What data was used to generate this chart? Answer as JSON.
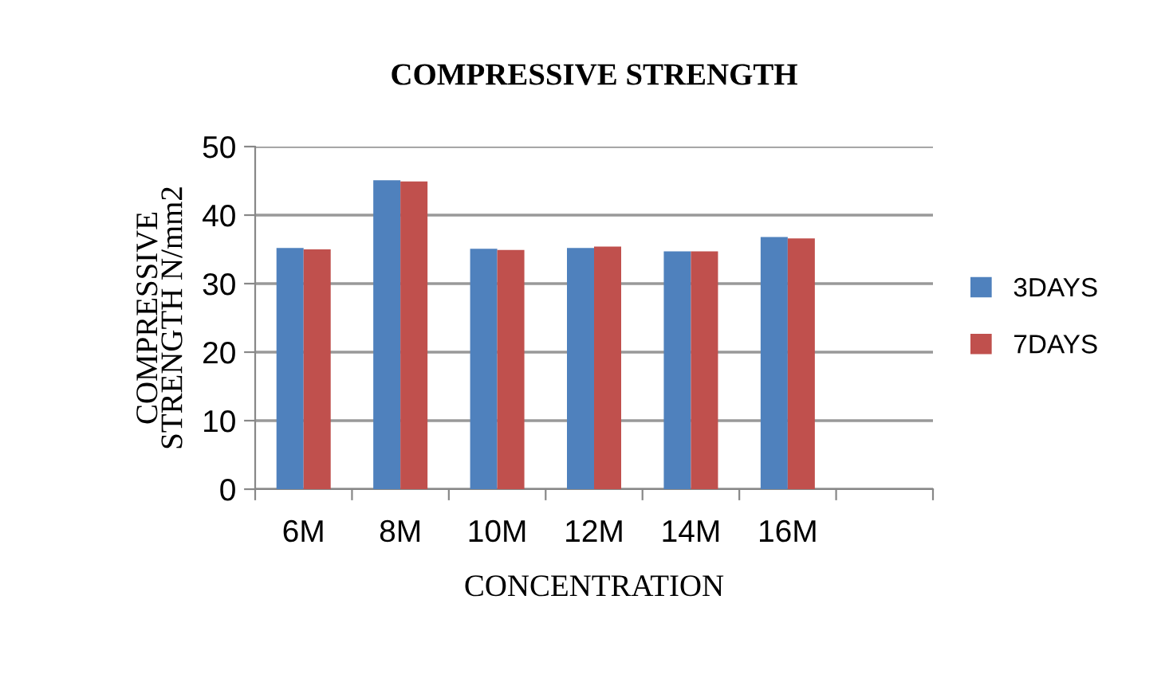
{
  "chart_data": {
    "type": "bar",
    "title": "COMPRESSIVE STRENGTH",
    "xlabel": "CONCENTRATION",
    "ylabel": "COMPRESSIVE\nSTRENGTH N/mm2",
    "categories": [
      "6M",
      "8M",
      "10M",
      "12M",
      "14M",
      "16M",
      null
    ],
    "series": [
      {
        "name": "3DAYS",
        "color": "#4f81bd",
        "values": [
          35.2,
          45.1,
          35.1,
          35.2,
          34.7,
          36.8,
          null
        ]
      },
      {
        "name": "7DAYS",
        "color": "#c0504d",
        "values": [
          35.0,
          44.9,
          34.9,
          35.4,
          34.7,
          36.6,
          null
        ]
      }
    ],
    "ylim": [
      0,
      50
    ],
    "yticks": [
      0,
      10,
      20,
      30,
      40,
      50
    ],
    "grid": "y",
    "legend": "right"
  }
}
